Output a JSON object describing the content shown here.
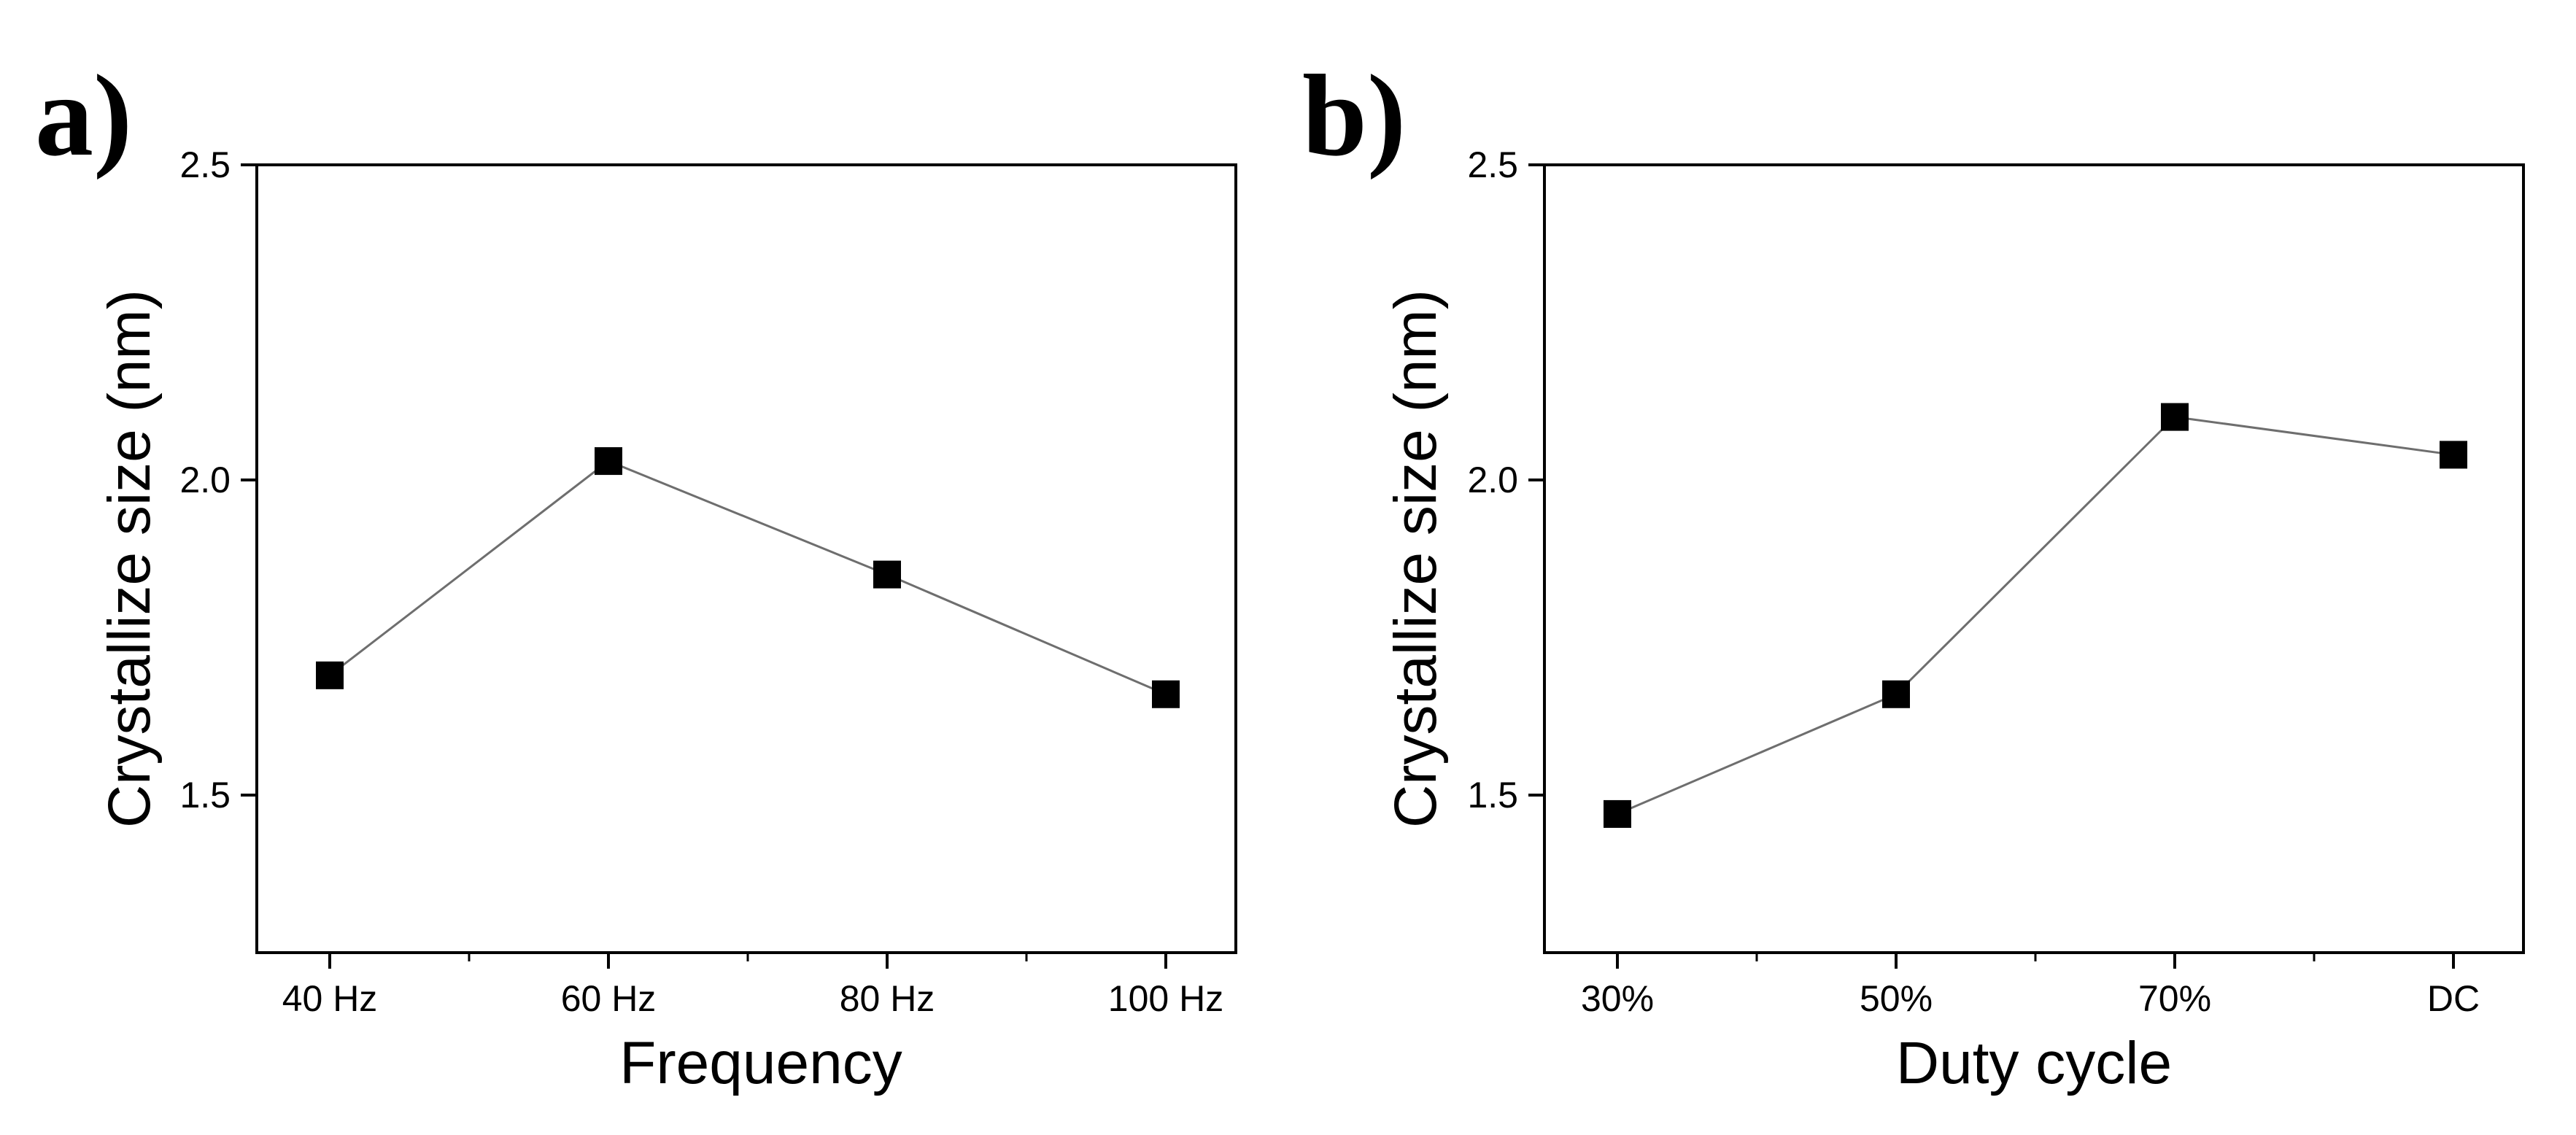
{
  "chart_data": [
    {
      "type": "line",
      "panel_label": "a)",
      "title": "",
      "xlabel": "Frequency",
      "ylabel": "Crystallize size (nm)",
      "categories": [
        "40 Hz",
        "60 Hz",
        "80 Hz",
        "100  Hz"
      ],
      "series": [
        {
          "name": "Crystallize size",
          "values": [
            1.69,
            2.03,
            1.85,
            1.66
          ]
        }
      ],
      "ylim": [
        1.25,
        2.5
      ],
      "yticks": [
        1.5,
        2.0,
        2.5
      ],
      "ytick_labels": [
        "1.5",
        "2.0",
        "2.5"
      ],
      "marker": "square",
      "grid": false,
      "legend": "none"
    },
    {
      "type": "line",
      "panel_label": "b)",
      "title": "",
      "xlabel": "Duty cycle",
      "ylabel": "Crystallize size (nm)",
      "categories": [
        "30%",
        "50%",
        "70%",
        "DC"
      ],
      "series": [
        {
          "name": "Crystallize size",
          "values": [
            1.47,
            1.66,
            2.1,
            2.04
          ]
        }
      ],
      "ylim": [
        1.25,
        2.5
      ],
      "yticks": [
        1.5,
        2.0,
        2.5
      ],
      "ytick_labels": [
        "1.5",
        "2.0",
        "2.5"
      ],
      "marker": "square",
      "grid": false,
      "legend": "none"
    }
  ],
  "colors": {
    "line": "#6e6e6e",
    "marker": "#000000",
    "axis": "#000000"
  }
}
